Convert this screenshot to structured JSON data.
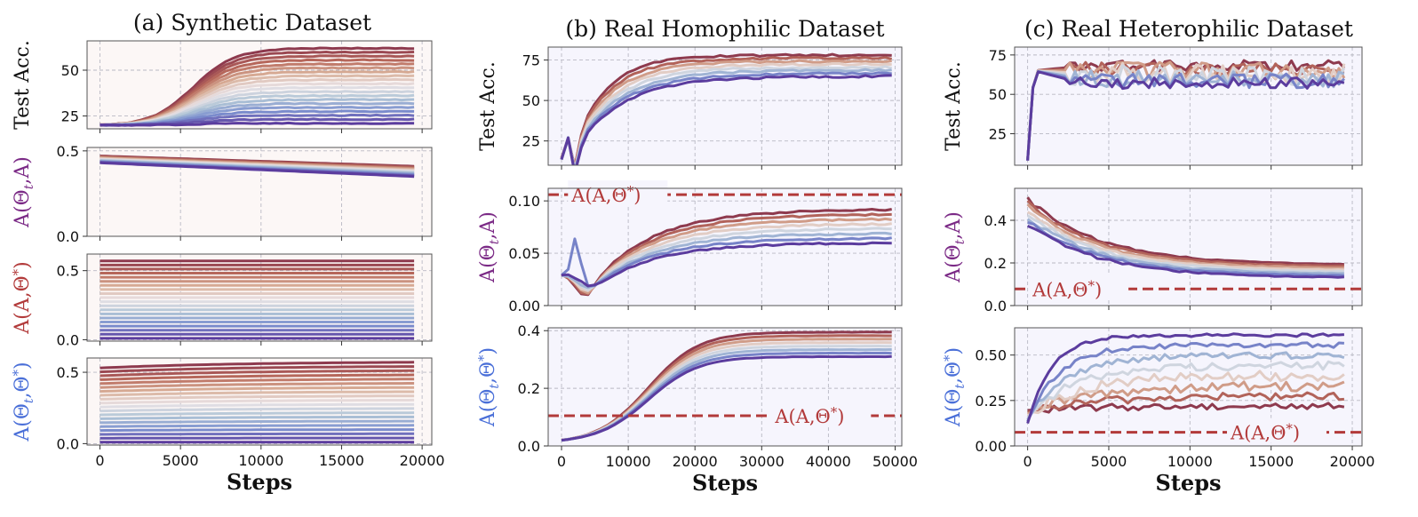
{
  "figure": {
    "colors": {
      "warm": "#8e3a4e",
      "cool": "#5b3c9e",
      "ref": "#b23a3a",
      "ylab_purple": "#7b2a86",
      "ylab_red": "#b23a3a",
      "ylab_blue": "#4a6fd8",
      "bg_synthetic": "#fcf7f6",
      "bg_real": "#f6f5fd"
    }
  },
  "chart_data": [
    {
      "type": "line",
      "panel": "a",
      "row": 0,
      "title": "(a) Synthetic Dataset",
      "ylabel": "Test Acc.",
      "ylabel_parts": [],
      "ylabel_color": "#111111",
      "xlim": [
        -800,
        20600
      ],
      "ylim": [
        18,
        66
      ],
      "yticks": [
        25,
        50
      ],
      "ytick_labels": [
        "25",
        "50"
      ],
      "xticks": [
        0,
        5000,
        10000,
        15000,
        20000
      ],
      "xtick_labels": [],
      "shape": "sigmoid",
      "n_series": 20,
      "x_end": 19500,
      "start": 20,
      "end_min": 21,
      "end_max": 62,
      "midpoint": 5800,
      "spread": 1300
    },
    {
      "type": "line",
      "panel": "a",
      "row": 1,
      "ylabel": "",
      "ylabel_parts": [
        "A(Θ",
        "t",
        ",A)"
      ],
      "ylabel_color": "#7b2a86",
      "xlim": [
        -800,
        20600
      ],
      "ylim": [
        0,
        0.52
      ],
      "yticks": [
        0,
        0.5
      ],
      "ytick_labels": [
        "0.0",
        "0.5"
      ],
      "xticks": [
        0,
        5000,
        10000,
        15000,
        20000
      ],
      "xtick_labels": [],
      "shape": "linear",
      "n_series": 20,
      "x_end": 19500,
      "start_min": 0.43,
      "start_max": 0.47,
      "end_min": 0.35,
      "end_max": 0.41
    },
    {
      "type": "line",
      "panel": "a",
      "row": 2,
      "ylabel": "",
      "ylabel_parts": [
        "A(A,Θ",
        "*",
        ")"
      ],
      "ylabel_color": "#b23a3a",
      "xlim": [
        -800,
        20600
      ],
      "ylim": [
        -0.01,
        0.62
      ],
      "yticks": [
        0,
        0.5
      ],
      "ytick_labels": [
        "0.0",
        "0.5"
      ],
      "xticks": [
        0,
        5000,
        10000,
        15000,
        20000
      ],
      "xtick_labels": [],
      "shape": "flat",
      "n_series": 20,
      "x_end": 19500,
      "end_min": 0.01,
      "end_max": 0.57
    },
    {
      "type": "line",
      "panel": "a",
      "row": 3,
      "ylabel": "",
      "ylabel_parts": [
        "A(Θ",
        "t",
        ",Θ",
        "*",
        ")"
      ],
      "ylabel_color": "#4a6fd8",
      "xlim": [
        -800,
        20600
      ],
      "ylim": [
        -0.01,
        0.6
      ],
      "yticks": [
        0,
        0.5
      ],
      "ytick_labels": [
        "0.0",
        "0.5"
      ],
      "xticks": [
        0,
        5000,
        10000,
        15000,
        20000
      ],
      "xtick_labels": [
        "0",
        "5000",
        "10000",
        "15000",
        "20000"
      ],
      "xlabel": "Steps",
      "shape": "rise",
      "n_series": 20,
      "x_end": 19500,
      "rise_scale": 9000,
      "start_min": 0.01,
      "start_max": 0.53,
      "end_min": 0.01,
      "end_max": 0.57
    },
    {
      "type": "line",
      "panel": "b",
      "row": 0,
      "title": "(b) Real Homophilic Dataset",
      "ylabel": "Test Acc.",
      "ylabel_parts": [],
      "ylabel_color": "#111111",
      "xlim": [
        -2000,
        51000
      ],
      "ylim": [
        10,
        83
      ],
      "yticks": [
        25,
        50,
        75
      ],
      "ytick_labels": [
        "25",
        "50",
        "75"
      ],
      "xticks": [
        0,
        10000,
        20000,
        30000,
        40000,
        50000
      ],
      "xtick_labels": [],
      "shape": "saturate_dip",
      "n_series": 8,
      "x_end": 49500,
      "rise_scale": 5500,
      "start": 14,
      "end_min": 65,
      "end_max": 78
    },
    {
      "type": "line",
      "panel": "b",
      "row": 1,
      "ylabel": "",
      "ylabel_parts": [
        "A(Θ",
        "t",
        ",A)"
      ],
      "ylabel_color": "#7b2a86",
      "xlim": [
        -2000,
        51000
      ],
      "ylim": [
        0,
        0.112
      ],
      "yticks": [
        0,
        0.05,
        0.1
      ],
      "ytick_labels": [
        "0.00",
        "0.05",
        "0.10"
      ],
      "xticks": [
        0,
        10000,
        20000,
        30000,
        40000,
        50000
      ],
      "xtick_labels": [],
      "shape": "dip_rise",
      "n_series": 8,
      "x_end": 49500,
      "rise_scale": 9000,
      "start": 0.03,
      "dip": 0.01,
      "end_min": 0.06,
      "end_max": 0.092,
      "ref_value": 0.106,
      "ref_label_parts": [
        "A(A,Θ",
        "*",
        ")"
      ],
      "ref_label_x": 1500
    },
    {
      "type": "line",
      "panel": "b",
      "row": 2,
      "ylabel": "",
      "ylabel_parts": [
        "A(Θ",
        "t",
        ",Θ",
        "*",
        ")"
      ],
      "ylabel_color": "#4a6fd8",
      "xlim": [
        -2000,
        51000
      ],
      "ylim": [
        0,
        0.41
      ],
      "yticks": [
        0,
        0.2,
        0.4
      ],
      "ytick_labels": [
        "0.0",
        "0.2",
        "0.4"
      ],
      "xticks": [
        0,
        10000,
        20000,
        30000,
        40000,
        50000
      ],
      "xtick_labels": [
        "0",
        "10000",
        "20000",
        "30000",
        "40000",
        "50000"
      ],
      "xlabel": "Steps",
      "shape": "sigmoid",
      "n_series": 8,
      "x_end": 49500,
      "start": 0.02,
      "end_min": 0.31,
      "end_max": 0.395,
      "midpoint": 13000,
      "spread": 3800,
      "ref_value": 0.105,
      "ref_label_parts": [
        "A(A,Θ",
        "*",
        ")"
      ],
      "ref_label_x": 32000
    },
    {
      "type": "line",
      "panel": "c",
      "row": 0,
      "title": "(c) Real Heterophilic Dataset",
      "ylabel": "Test Acc.",
      "ylabel_parts": [],
      "ylabel_color": "#111111",
      "xlim": [
        -800,
        20600
      ],
      "ylim": [
        5,
        80
      ],
      "yticks": [
        25,
        50,
        75
      ],
      "ytick_labels": [
        "25",
        "50",
        "75"
      ],
      "xticks": [
        0,
        5000,
        10000,
        15000,
        20000
      ],
      "xtick_labels": [],
      "shape": "jump_noisy",
      "n_series": 8,
      "x_end": 19500,
      "jump_x": 400,
      "start": 8,
      "plateau": 65,
      "end_min": 57,
      "end_max": 68
    },
    {
      "type": "line",
      "panel": "c",
      "row": 1,
      "ylabel": "",
      "ylabel_parts": [
        "A(Θ",
        "t",
        ",A)"
      ],
      "ylabel_color": "#7b2a86",
      "xlim": [
        -800,
        20600
      ],
      "ylim": [
        0,
        0.55
      ],
      "yticks": [
        0,
        0.2,
        0.4
      ],
      "ytick_labels": [
        "0.0",
        "0.2",
        "0.4"
      ],
      "xticks": [
        0,
        5000,
        10000,
        15000,
        20000
      ],
      "xtick_labels": [],
      "shape": "decay",
      "n_series": 8,
      "x_end": 19500,
      "rise_scale": 4500,
      "start_min": 0.38,
      "start_max": 0.5,
      "end_min": 0.13,
      "end_max": 0.19,
      "ref_value": 0.078,
      "ref_label_parts": [
        "A(A,Θ",
        "*",
        ")"
      ],
      "ref_label_x": 300
    },
    {
      "type": "line",
      "panel": "c",
      "row": 2,
      "ylabel": "",
      "ylabel_parts": [
        "A(Θ",
        "t",
        ",Θ",
        "*",
        ")"
      ],
      "ylabel_color": "#4a6fd8",
      "xlim": [
        -800,
        20600
      ],
      "ylim": [
        0,
        0.65
      ],
      "yticks": [
        0,
        0.25,
        0.5
      ],
      "ytick_labels": [
        "0.00",
        "0.25",
        "0.50"
      ],
      "xticks": [
        0,
        5000,
        10000,
        15000,
        20000
      ],
      "xtick_labels": [
        "0",
        "5000",
        "10000",
        "15000",
        "20000"
      ],
      "xlabel": "Steps",
      "shape": "rise_noisy",
      "n_series": 8,
      "x_end": 19500,
      "rise_scale": 3000,
      "start_min": 0.1,
      "start_max": 0.22,
      "end_min": 0.22,
      "end_max": 0.61,
      "ref_value": 0.075,
      "ref_label_parts": [
        "A(A,Θ",
        "*",
        ")"
      ],
      "ref_label_x": 12500
    }
  ]
}
